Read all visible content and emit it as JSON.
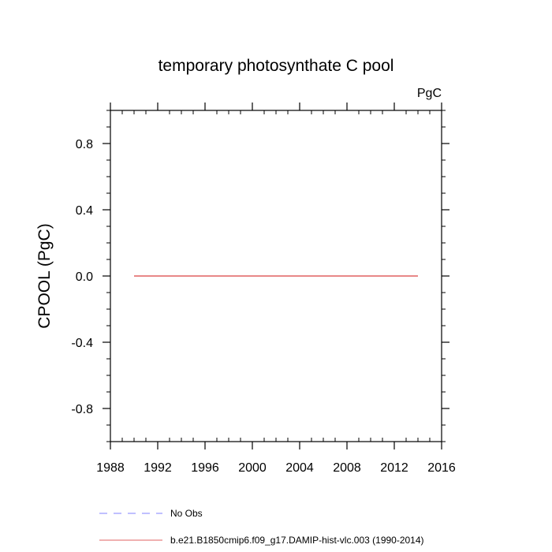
{
  "chart_data": {
    "type": "line",
    "title": "temporary photosynthate C pool",
    "units": "PgC",
    "ylabel": "CPOOL  (PgC)",
    "xlabel": "",
    "xlim": [
      1988,
      2016
    ],
    "ylim": [
      -1.0,
      1.0
    ],
    "x_major_ticks": [
      1988,
      1992,
      1996,
      2000,
      2004,
      2008,
      2012,
      2016
    ],
    "x_tick_labels": [
      "1988",
      "1992",
      "1996",
      "2000",
      "2004",
      "2008",
      "2012",
      "2016"
    ],
    "y_major_ticks": [
      0.8,
      0.4,
      0.0,
      -0.4,
      -0.8
    ],
    "y_tick_labels": [
      "0.8",
      "0.4",
      "0.0",
      "-0.4",
      "-0.8"
    ],
    "grid": false,
    "legend_position": "bottom",
    "series": [
      {
        "name": "No Obs",
        "color": "#8080ff",
        "dash": "dashed",
        "x": [],
        "y": []
      },
      {
        "name": "b.e21.B1850cmip6.f09_g17.DAMIP-hist-vlc.003 (1990-2014)",
        "color": "#e06060",
        "dash": "solid",
        "x": [
          1990,
          1991,
          1992,
          1993,
          1994,
          1995,
          1996,
          1997,
          1998,
          1999,
          2000,
          2001,
          2002,
          2003,
          2004,
          2005,
          2006,
          2007,
          2008,
          2009,
          2010,
          2011,
          2012,
          2013,
          2014
        ],
        "y": [
          0,
          0,
          0,
          0,
          0,
          0,
          0,
          0,
          0,
          0,
          0,
          0,
          0,
          0,
          0,
          0,
          0,
          0,
          0,
          0,
          0,
          0,
          0,
          0,
          0
        ]
      }
    ]
  }
}
